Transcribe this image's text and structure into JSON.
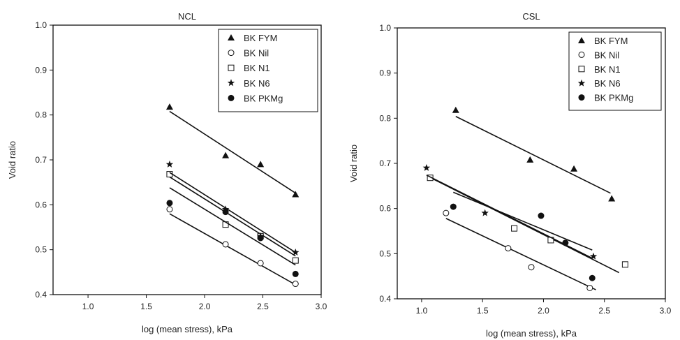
{
  "chart_data": [
    {
      "type": "scatter",
      "title": "NCL",
      "xlabel": "log (mean stress), kPa",
      "ylabel": "Void ratio",
      "xlim": [
        0.7,
        3.0
      ],
      "ylim": [
        0.4,
        1.0
      ],
      "xticks": [
        "1.0",
        "1.5",
        "2.0",
        "2.5",
        "3.0"
      ],
      "yticks": [
        "0.4",
        "0.5",
        "0.6",
        "0.7",
        "0.8",
        "0.9",
        "1.0"
      ],
      "legend_position": "top-right",
      "series": [
        {
          "name": "BK FYM",
          "marker": "triangle",
          "points": [
            [
              1.7,
              0.818
            ],
            [
              2.18,
              0.71
            ],
            [
              2.48,
              0.69
            ],
            [
              2.78,
              0.623
            ]
          ],
          "fit": [
            [
              1.7,
              0.808
            ],
            [
              2.78,
              0.626
            ]
          ]
        },
        {
          "name": "BK Nil",
          "marker": "circle-open",
          "points": [
            [
              1.7,
              0.59
            ],
            [
              2.18,
              0.512
            ],
            [
              2.48,
              0.47
            ],
            [
              2.78,
              0.424
            ]
          ],
          "fit": [
            [
              1.7,
              0.58
            ],
            [
              2.78,
              0.422
            ]
          ]
        },
        {
          "name": "BK N1",
          "marker": "square-open",
          "points": [
            [
              1.7,
              0.668
            ],
            [
              2.18,
              0.556
            ],
            [
              2.48,
              0.53
            ],
            [
              2.78,
              0.476
            ]
          ],
          "fit": [
            [
              1.7,
              0.662
            ],
            [
              2.78,
              0.486
            ]
          ]
        },
        {
          "name": "BK N6",
          "marker": "star",
          "points": [
            [
              1.7,
              0.69
            ],
            [
              2.18,
              0.59
            ],
            [
              2.48,
              0.53
            ],
            [
              2.78,
              0.494
            ]
          ],
          "fit": [
            [
              1.7,
              0.672
            ],
            [
              2.78,
              0.494
            ]
          ]
        },
        {
          "name": "BK PKMg",
          "marker": "circle-filled",
          "points": [
            [
              1.7,
              0.604
            ],
            [
              2.18,
              0.584
            ],
            [
              2.48,
              0.526
            ],
            [
              2.78,
              0.446
            ]
          ],
          "fit": [
            [
              1.7,
              0.638
            ],
            [
              2.78,
              0.466
            ]
          ]
        }
      ]
    },
    {
      "type": "scatter",
      "title": "CSL",
      "xlabel": "log (mean stress), kPa",
      "ylabel": "Void ratio",
      "xlim": [
        0.8,
        3.0
      ],
      "ylim": [
        0.4,
        1.0
      ],
      "xticks": [
        "1.0",
        "1.5",
        "2.0",
        "2.5",
        "3.0"
      ],
      "yticks": [
        "0.4",
        "0.5",
        "0.6",
        "0.7",
        "0.8",
        "0.9",
        "1.0"
      ],
      "legend_position": "top-right",
      "series": [
        {
          "name": "BK FYM",
          "marker": "triangle",
          "points": [
            [
              1.28,
              0.818
            ],
            [
              1.89,
              0.708
            ],
            [
              2.25,
              0.688
            ],
            [
              2.56,
              0.622
            ]
          ],
          "fit": [
            [
              1.28,
              0.804
            ],
            [
              2.55,
              0.634
            ]
          ]
        },
        {
          "name": "BK Nil",
          "marker": "circle-open",
          "points": [
            [
              1.2,
              0.59
            ],
            [
              1.71,
              0.512
            ],
            [
              1.9,
              0.47
            ],
            [
              2.38,
              0.424
            ]
          ],
          "fit": [
            [
              1.2,
              0.578
            ],
            [
              2.43,
              0.42
            ]
          ]
        },
        {
          "name": "BK N1",
          "marker": "square-open",
          "points": [
            [
              1.07,
              0.668
            ],
            [
              1.76,
              0.556
            ],
            [
              2.06,
              0.53
            ],
            [
              2.67,
              0.476
            ]
          ],
          "fit": [
            [
              1.06,
              0.67
            ],
            [
              2.62,
              0.458
            ]
          ]
        },
        {
          "name": "BK N6",
          "marker": "star",
          "points": [
            [
              1.04,
              0.69
            ],
            [
              1.52,
              0.59
            ],
            [
              2.41,
              0.494
            ]
          ],
          "fit": [
            [
              1.04,
              0.674
            ],
            [
              2.4,
              0.49
            ]
          ]
        },
        {
          "name": "BK PKMg",
          "marker": "circle-filled",
          "points": [
            [
              1.26,
              0.604
            ],
            [
              1.98,
              0.584
            ],
            [
              2.18,
              0.524
            ],
            [
              2.4,
              0.446
            ]
          ],
          "fit": [
            [
              1.26,
              0.636
            ],
            [
              2.4,
              0.508
            ]
          ]
        }
      ]
    }
  ]
}
